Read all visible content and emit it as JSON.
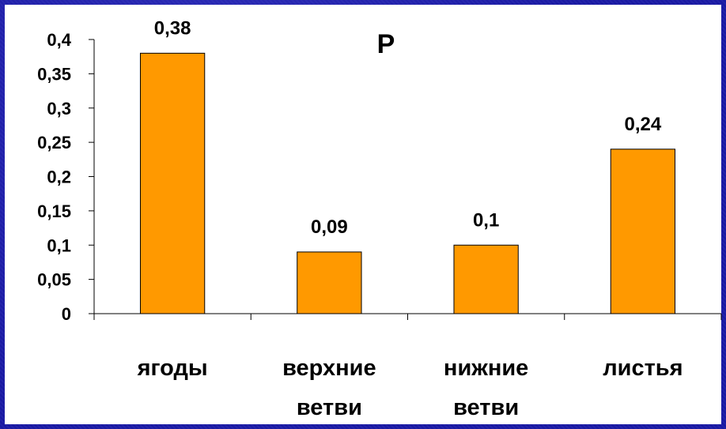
{
  "chart_data": {
    "type": "bar",
    "title": "P",
    "categories": [
      [
        "ягоды"
      ],
      [
        "верхние",
        "ветви"
      ],
      [
        "нижние",
        "ветви"
      ],
      [
        "листья"
      ]
    ],
    "values": [
      0.38,
      0.09,
      0.1,
      0.24
    ],
    "value_labels": [
      "0,38",
      "0,09",
      "0,1",
      "0,24"
    ],
    "y_ticks": [
      0,
      0.05,
      0.1,
      0.15,
      0.2,
      0.25,
      0.3,
      0.35,
      0.4
    ],
    "y_tick_labels": [
      "0",
      "0,05",
      "0,1",
      "0,15",
      "0,2",
      "0,25",
      "0,3",
      "0,35",
      "0,4"
    ],
    "ylim": [
      0,
      0.4
    ],
    "xlabel": "",
    "ylabel": "",
    "grid": false,
    "legend": "none",
    "colors": {
      "bar_fill": "#ff9900",
      "bar_stroke": "#000000",
      "background": "#1a1aa6",
      "plot_area": "#ffffff"
    }
  }
}
